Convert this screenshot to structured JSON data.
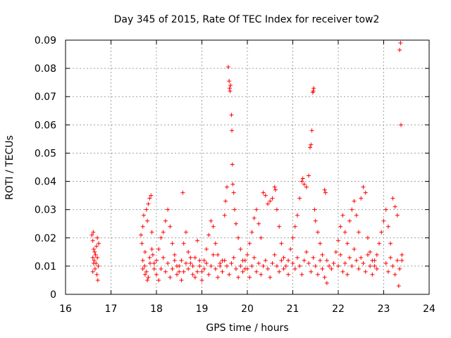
{
  "chart_data": {
    "type": "scatter",
    "title": "Day 345 of 2015, Rate Of TEC Index for receiver tow2",
    "xlabel": "GPS time / hours",
    "ylabel": "ROTI / TECUs",
    "xlim": [
      16,
      24
    ],
    "ylim": [
      0,
      0.09
    ],
    "x_ticks": [
      "16",
      "17",
      "18",
      "19",
      "20",
      "21",
      "22",
      "23",
      "24"
    ],
    "y_ticks": [
      "0",
      "0.01",
      "0.02",
      "0.03",
      "0.04",
      "0.05",
      "0.06",
      "0.07",
      "0.08",
      "0.09"
    ],
    "grid": true,
    "marker": "+",
    "color": "#ff0000",
    "series": [
      {
        "name": "ROTI",
        "points": [
          [
            16.58,
            0.021
          ],
          [
            16.6,
            0.019
          ],
          [
            16.62,
            0.016
          ],
          [
            16.6,
            0.013
          ],
          [
            16.62,
            0.011
          ],
          [
            16.65,
            0.009
          ],
          [
            16.63,
            0.012
          ],
          [
            16.66,
            0.014
          ],
          [
            16.68,
            0.017
          ],
          [
            16.7,
            0.02
          ],
          [
            16.72,
            0.01
          ],
          [
            16.69,
            0.007
          ],
          [
            16.71,
            0.005
          ],
          [
            16.6,
            0.008
          ],
          [
            16.64,
            0.015
          ],
          [
            16.67,
            0.011
          ],
          [
            16.7,
            0.013
          ],
          [
            16.73,
            0.018
          ],
          [
            16.61,
            0.022
          ],
          [
            17.66,
            0.021
          ],
          [
            17.68,
            0.018
          ],
          [
            17.7,
            0.024
          ],
          [
            17.72,
            0.028
          ],
          [
            17.75,
            0.015
          ],
          [
            17.78,
            0.03
          ],
          [
            17.8,
            0.026
          ],
          [
            17.82,
            0.032
          ],
          [
            17.85,
            0.034
          ],
          [
            17.88,
            0.035
          ],
          [
            17.9,
            0.022
          ],
          [
            17.7,
            0.012
          ],
          [
            17.74,
            0.01
          ],
          [
            17.78,
            0.008
          ],
          [
            17.82,
            0.006
          ],
          [
            17.86,
            0.011
          ],
          [
            17.92,
            0.014
          ],
          [
            17.95,
            0.009
          ],
          [
            18.0,
            0.012
          ],
          [
            18.05,
            0.016
          ],
          [
            18.1,
            0.02
          ],
          [
            18.15,
            0.022
          ],
          [
            18.2,
            0.026
          ],
          [
            18.25,
            0.03
          ],
          [
            18.3,
            0.024
          ],
          [
            18.35,
            0.018
          ],
          [
            18.4,
            0.014
          ],
          [
            18.45,
            0.01
          ],
          [
            18.5,
            0.008
          ],
          [
            18.55,
            0.012
          ],
          [
            18.58,
            0.036
          ],
          [
            18.6,
            0.018
          ],
          [
            18.65,
            0.022
          ],
          [
            18.7,
            0.015
          ],
          [
            18.75,
            0.011
          ],
          [
            18.8,
            0.007
          ],
          [
            18.85,
            0.013
          ],
          [
            18.9,
            0.019
          ],
          [
            18.95,
            0.01
          ],
          [
            19.0,
            0.008
          ],
          [
            19.05,
            0.012
          ],
          [
            19.1,
            0.016
          ],
          [
            19.15,
            0.021
          ],
          [
            19.2,
            0.026
          ],
          [
            19.25,
            0.024
          ],
          [
            19.3,
            0.018
          ],
          [
            19.35,
            0.014
          ],
          [
            19.4,
            0.01
          ],
          [
            19.45,
            0.012
          ],
          [
            19.5,
            0.028
          ],
          [
            19.52,
            0.033
          ],
          [
            19.55,
            0.038
          ],
          [
            19.58,
            0.0805
          ],
          [
            19.6,
            0.0755
          ],
          [
            19.61,
            0.073
          ],
          [
            19.62,
            0.072
          ],
          [
            19.63,
            0.074
          ],
          [
            19.65,
            0.0635
          ],
          [
            19.66,
            0.058
          ],
          [
            19.67,
            0.046
          ],
          [
            19.68,
            0.039
          ],
          [
            19.7,
            0.036
          ],
          [
            19.72,
            0.03
          ],
          [
            19.75,
            0.025
          ],
          [
            19.8,
            0.02
          ],
          [
            19.85,
            0.016
          ],
          [
            19.9,
            0.012
          ],
          [
            19.95,
            0.009
          ],
          [
            20.0,
            0.014
          ],
          [
            20.05,
            0.018
          ],
          [
            20.1,
            0.022
          ],
          [
            20.15,
            0.027
          ],
          [
            20.2,
            0.03
          ],
          [
            20.25,
            0.025
          ],
          [
            20.3,
            0.02
          ],
          [
            20.35,
            0.036
          ],
          [
            20.4,
            0.035
          ],
          [
            20.45,
            0.032
          ],
          [
            20.5,
            0.033
          ],
          [
            20.55,
            0.034
          ],
          [
            20.6,
            0.038
          ],
          [
            20.62,
            0.037
          ],
          [
            20.65,
            0.03
          ],
          [
            20.7,
            0.024
          ],
          [
            20.75,
            0.018
          ],
          [
            20.8,
            0.013
          ],
          [
            20.85,
            0.01
          ],
          [
            20.9,
            0.012
          ],
          [
            20.95,
            0.016
          ],
          [
            21.0,
            0.02
          ],
          [
            21.05,
            0.024
          ],
          [
            21.1,
            0.028
          ],
          [
            21.15,
            0.034
          ],
          [
            21.2,
            0.04
          ],
          [
            21.22,
            0.041
          ],
          [
            21.25,
            0.039
          ],
          [
            21.3,
            0.038
          ],
          [
            21.35,
            0.042
          ],
          [
            21.38,
            0.052
          ],
          [
            21.4,
            0.053
          ],
          [
            21.42,
            0.058
          ],
          [
            21.44,
            0.0715
          ],
          [
            21.45,
            0.072
          ],
          [
            21.46,
            0.073
          ],
          [
            21.48,
            0.03
          ],
          [
            21.5,
            0.026
          ],
          [
            21.55,
            0.022
          ],
          [
            21.6,
            0.018
          ],
          [
            21.65,
            0.014
          ],
          [
            21.7,
            0.037
          ],
          [
            21.72,
            0.036
          ],
          [
            21.75,
            0.012
          ],
          [
            21.8,
            0.01
          ],
          [
            21.85,
            0.009
          ],
          [
            21.9,
            0.011
          ],
          [
            21.95,
            0.015
          ],
          [
            22.0,
            0.019
          ],
          [
            22.05,
            0.024
          ],
          [
            22.1,
            0.028
          ],
          [
            22.15,
            0.022
          ],
          [
            22.2,
            0.018
          ],
          [
            22.25,
            0.026
          ],
          [
            22.3,
            0.03
          ],
          [
            22.35,
            0.033
          ],
          [
            22.4,
            0.028
          ],
          [
            22.45,
            0.022
          ],
          [
            22.5,
            0.034
          ],
          [
            22.55,
            0.038
          ],
          [
            22.6,
            0.036
          ],
          [
            22.65,
            0.02
          ],
          [
            22.7,
            0.015
          ],
          [
            22.75,
            0.012
          ],
          [
            22.8,
            0.01
          ],
          [
            22.85,
            0.014
          ],
          [
            22.9,
            0.018
          ],
          [
            22.95,
            0.022
          ],
          [
            23.0,
            0.026
          ],
          [
            23.05,
            0.03
          ],
          [
            23.1,
            0.024
          ],
          [
            23.15,
            0.018
          ],
          [
            23.2,
            0.034
          ],
          [
            23.25,
            0.031
          ],
          [
            23.3,
            0.028
          ],
          [
            23.35,
            0.0865
          ],
          [
            23.37,
            0.089
          ],
          [
            23.38,
            0.06
          ],
          [
            23.4,
            0.012
          ],
          [
            23.33,
            0.003
          ],
          [
            17.7,
            0.009
          ],
          [
            17.75,
            0.007
          ],
          [
            17.8,
            0.005
          ],
          [
            17.85,
            0.013
          ],
          [
            17.9,
            0.016
          ],
          [
            17.95,
            0.011
          ],
          [
            18.0,
            0.007
          ],
          [
            18.05,
            0.005
          ],
          [
            18.1,
            0.009
          ],
          [
            18.15,
            0.013
          ],
          [
            18.2,
            0.008
          ],
          [
            18.25,
            0.011
          ],
          [
            18.3,
            0.006
          ],
          [
            18.35,
            0.009
          ],
          [
            18.4,
            0.012
          ],
          [
            18.45,
            0.007
          ],
          [
            18.5,
            0.01
          ],
          [
            18.55,
            0.005
          ],
          [
            18.6,
            0.008
          ],
          [
            18.65,
            0.011
          ],
          [
            18.7,
            0.009
          ],
          [
            18.75,
            0.013
          ],
          [
            18.8,
            0.01
          ],
          [
            18.85,
            0.006
          ],
          [
            18.9,
            0.008
          ],
          [
            18.95,
            0.012
          ],
          [
            19.0,
            0.005
          ],
          [
            19.05,
            0.009
          ],
          [
            19.1,
            0.011
          ],
          [
            19.15,
            0.007
          ],
          [
            19.2,
            0.01
          ],
          [
            19.25,
            0.014
          ],
          [
            19.3,
            0.009
          ],
          [
            19.35,
            0.006
          ],
          [
            19.4,
            0.011
          ],
          [
            19.45,
            0.008
          ],
          [
            19.5,
            0.012
          ],
          [
            19.55,
            0.01
          ],
          [
            19.6,
            0.007
          ],
          [
            19.65,
            0.011
          ],
          [
            19.7,
            0.013
          ],
          [
            19.75,
            0.009
          ],
          [
            19.8,
            0.006
          ],
          [
            19.85,
            0.01
          ],
          [
            19.9,
            0.008
          ],
          [
            19.95,
            0.012
          ],
          [
            20.0,
            0.009
          ],
          [
            20.05,
            0.006
          ],
          [
            20.1,
            0.01
          ],
          [
            20.15,
            0.013
          ],
          [
            20.2,
            0.008
          ],
          [
            20.25,
            0.011
          ],
          [
            20.3,
            0.007
          ],
          [
            20.35,
            0.01
          ],
          [
            20.4,
            0.012
          ],
          [
            20.45,
            0.009
          ],
          [
            20.5,
            0.006
          ],
          [
            20.55,
            0.011
          ],
          [
            20.6,
            0.014
          ],
          [
            20.65,
            0.01
          ],
          [
            20.7,
            0.008
          ],
          [
            20.75,
            0.012
          ],
          [
            20.8,
            0.009
          ],
          [
            20.9,
            0.007
          ],
          [
            21.0,
            0.011
          ],
          [
            21.05,
            0.009
          ],
          [
            21.1,
            0.013
          ],
          [
            21.15,
            0.01
          ],
          [
            21.2,
            0.007
          ],
          [
            21.25,
            0.012
          ],
          [
            21.3,
            0.015
          ],
          [
            21.35,
            0.011
          ],
          [
            21.4,
            0.008
          ],
          [
            21.45,
            0.013
          ],
          [
            21.5,
            0.01
          ],
          [
            21.55,
            0.007
          ],
          [
            21.6,
            0.012
          ],
          [
            21.65,
            0.009
          ],
          [
            21.7,
            0.006
          ],
          [
            21.75,
            0.004
          ],
          [
            22.0,
            0.01
          ],
          [
            22.05,
            0.014
          ],
          [
            22.1,
            0.008
          ],
          [
            22.15,
            0.011
          ],
          [
            22.2,
            0.007
          ],
          [
            22.25,
            0.013
          ],
          [
            22.3,
            0.01
          ],
          [
            22.35,
            0.016
          ],
          [
            22.4,
            0.012
          ],
          [
            22.45,
            0.009
          ],
          [
            22.5,
            0.013
          ],
          [
            22.55,
            0.011
          ],
          [
            22.6,
            0.008
          ],
          [
            22.65,
            0.014
          ],
          [
            22.7,
            0.01
          ],
          [
            22.75,
            0.007
          ],
          [
            22.8,
            0.012
          ],
          [
            22.85,
            0.009
          ],
          [
            23.05,
            0.011
          ],
          [
            23.1,
            0.008
          ],
          [
            23.15,
            0.013
          ],
          [
            23.2,
            0.01
          ],
          [
            23.25,
            0.007
          ],
          [
            23.3,
            0.012
          ],
          [
            23.35,
            0.009
          ],
          [
            23.4,
            0.014
          ]
        ]
      }
    ]
  }
}
